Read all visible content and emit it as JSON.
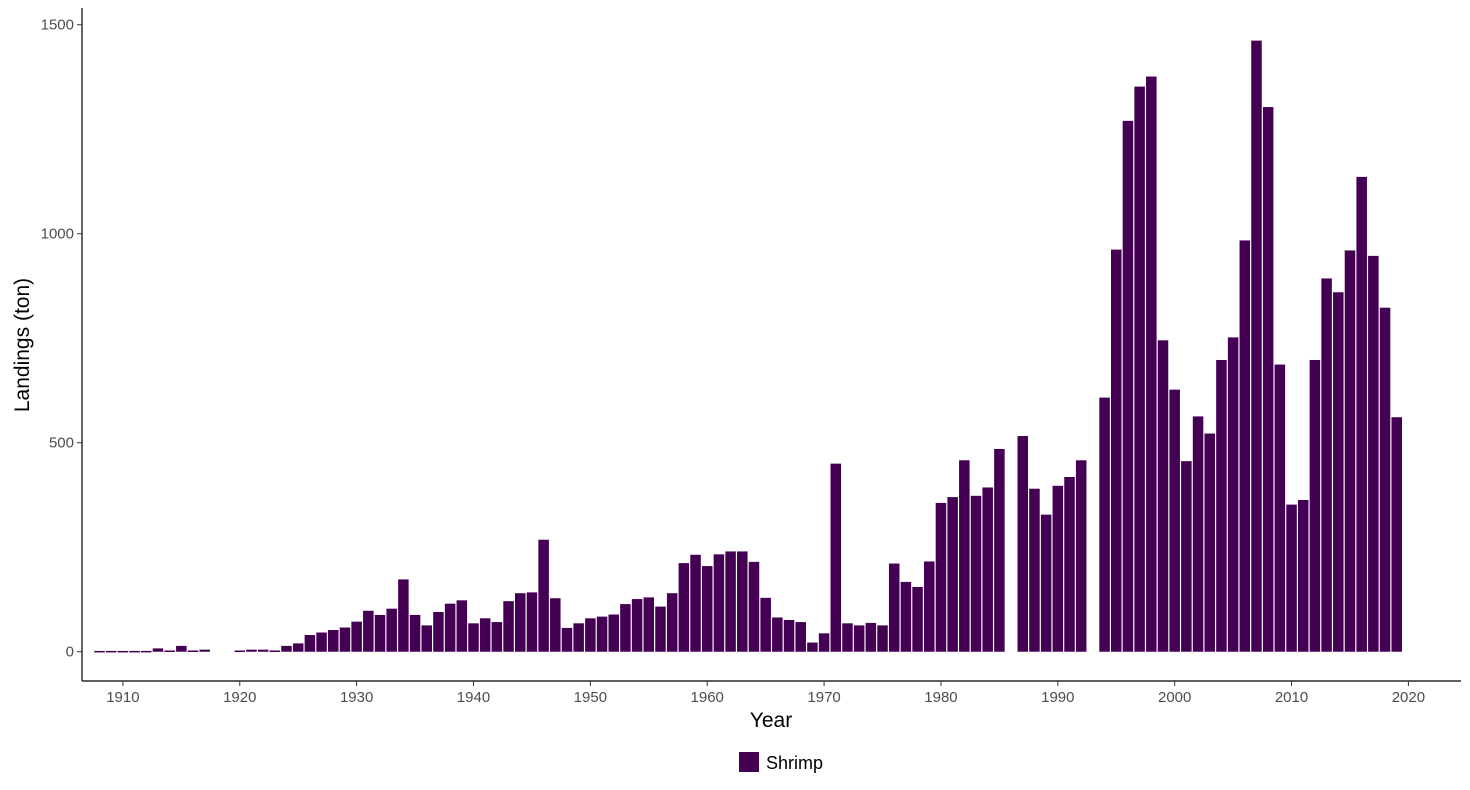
{
  "chart_data": {
    "type": "bar",
    "title": "",
    "xlabel": "Year",
    "ylabel": "Landings (ton)",
    "xlim": [
      1906.5,
      2024.5
    ],
    "ylim": [
      -70,
      1540
    ],
    "xticks": [
      1910,
      1920,
      1930,
      1940,
      1950,
      1960,
      1970,
      1980,
      1990,
      2000,
      2010,
      2020
    ],
    "yticks": [
      0,
      500,
      1000,
      1500
    ],
    "grid": false,
    "legend_position": "bottom",
    "series": [
      {
        "name": "Shrimp",
        "color": "#440154",
        "points": [
          [
            1908,
            2
          ],
          [
            1909,
            2
          ],
          [
            1910,
            2
          ],
          [
            1911,
            2
          ],
          [
            1912,
            2
          ],
          [
            1913,
            8
          ],
          [
            1914,
            3
          ],
          [
            1915,
            14
          ],
          [
            1916,
            3
          ],
          [
            1917,
            5
          ],
          [
            1920,
            3
          ],
          [
            1921,
            5
          ],
          [
            1922,
            5
          ],
          [
            1923,
            3
          ],
          [
            1924,
            14
          ],
          [
            1925,
            20
          ],
          [
            1926,
            40
          ],
          [
            1927,
            46
          ],
          [
            1928,
            52
          ],
          [
            1929,
            58
          ],
          [
            1930,
            72
          ],
          [
            1931,
            98
          ],
          [
            1932,
            88
          ],
          [
            1933,
            103
          ],
          [
            1934,
            173
          ],
          [
            1935,
            88
          ],
          [
            1936,
            63
          ],
          [
            1937,
            95
          ],
          [
            1938,
            115
          ],
          [
            1939,
            123
          ],
          [
            1940,
            68
          ],
          [
            1941,
            80
          ],
          [
            1942,
            71
          ],
          [
            1943,
            121
          ],
          [
            1944,
            140
          ],
          [
            1945,
            142
          ],
          [
            1946,
            268
          ],
          [
            1947,
            128
          ],
          [
            1948,
            57
          ],
          [
            1949,
            68
          ],
          [
            1950,
            80
          ],
          [
            1951,
            84
          ],
          [
            1952,
            89
          ],
          [
            1953,
            114
          ],
          [
            1954,
            126
          ],
          [
            1955,
            130
          ],
          [
            1956,
            108
          ],
          [
            1957,
            140
          ],
          [
            1958,
            212
          ],
          [
            1959,
            232
          ],
          [
            1960,
            205
          ],
          [
            1961,
            233
          ],
          [
            1962,
            240
          ],
          [
            1963,
            240
          ],
          [
            1964,
            215
          ],
          [
            1965,
            129
          ],
          [
            1966,
            82
          ],
          [
            1967,
            76
          ],
          [
            1968,
            71
          ],
          [
            1969,
            22
          ],
          [
            1970,
            44
          ],
          [
            1971,
            450
          ],
          [
            1972,
            68
          ],
          [
            1973,
            63
          ],
          [
            1974,
            69
          ],
          [
            1975,
            63
          ],
          [
            1976,
            211
          ],
          [
            1977,
            167
          ],
          [
            1978,
            155
          ],
          [
            1979,
            216
          ],
          [
            1980,
            356
          ],
          [
            1981,
            370
          ],
          [
            1982,
            458
          ],
          [
            1983,
            373
          ],
          [
            1984,
            393
          ],
          [
            1985,
            485
          ],
          [
            1987,
            516
          ],
          [
            1988,
            390
          ],
          [
            1989,
            328
          ],
          [
            1990,
            397
          ],
          [
            1991,
            418
          ],
          [
            1992,
            458
          ],
          [
            1994,
            608
          ],
          [
            1995,
            962
          ],
          [
            1996,
            1270
          ],
          [
            1997,
            1352
          ],
          [
            1998,
            1376
          ],
          [
            1999,
            745
          ],
          [
            2000,
            627
          ],
          [
            2001,
            456
          ],
          [
            2002,
            563
          ],
          [
            2003,
            522
          ],
          [
            2004,
            698
          ],
          [
            2005,
            752
          ],
          [
            2006,
            984
          ],
          [
            2007,
            1462
          ],
          [
            2008,
            1303
          ],
          [
            2009,
            687
          ],
          [
            2010,
            352
          ],
          [
            2011,
            363
          ],
          [
            2012,
            698
          ],
          [
            2013,
            893
          ],
          [
            2014,
            860
          ],
          [
            2015,
            960
          ],
          [
            2016,
            1136
          ],
          [
            2017,
            947
          ],
          [
            2018,
            823
          ],
          [
            2019,
            561
          ]
        ]
      }
    ]
  }
}
